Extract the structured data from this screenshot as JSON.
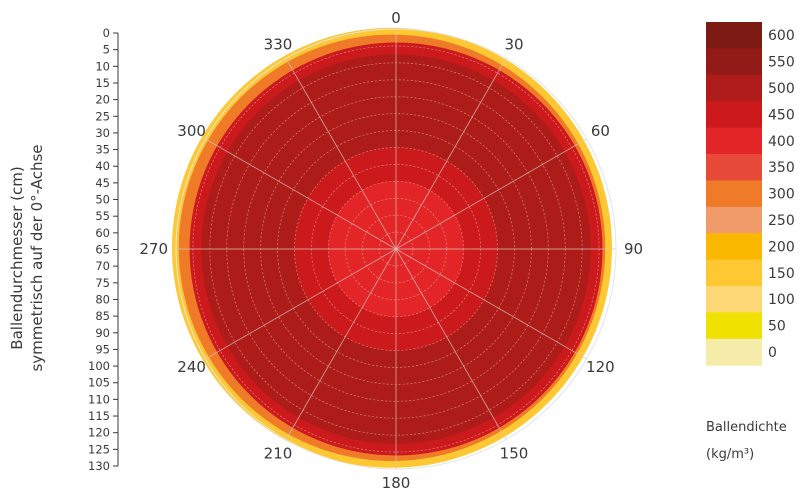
{
  "chart_data": {
    "type": "polar-heatmap",
    "title": "",
    "angular_axis": {
      "ticks": [
        0,
        30,
        60,
        90,
        120,
        150,
        180,
        210,
        240,
        270,
        300,
        330
      ],
      "labels": [
        "0",
        "30",
        "60",
        "90",
        "120",
        "150",
        "180",
        "210",
        "240",
        "270",
        "300",
        "330"
      ]
    },
    "radial_axis": {
      "label_line1": "Ballendurchmesser (cm)",
      "label_line2": "symmetrisch auf der 0°-Achse",
      "ticks": [
        "0",
        "5",
        "10",
        "15",
        "20",
        "25",
        "30",
        "35",
        "40",
        "45",
        "50",
        "55",
        "60",
        "65",
        "70",
        "75",
        "80",
        "85",
        "90",
        "95",
        "100",
        "105",
        "110",
        "115",
        "120",
        "125",
        "130"
      ],
      "range": [
        0,
        130
      ]
    },
    "colorbar": {
      "title_line1": "Ballendichte",
      "title_line2": "(kg/m³)",
      "levels": [
        {
          "value": "600",
          "color": "#7d1a14"
        },
        {
          "value": "550",
          "color": "#931b17"
        },
        {
          "value": "500",
          "color": "#ad1c19"
        },
        {
          "value": "450",
          "color": "#cc191c"
        },
        {
          "value": "400",
          "color": "#e42527"
        },
        {
          "value": "350",
          "color": "#e84a3a"
        },
        {
          "value": "300",
          "color": "#ef7a28"
        },
        {
          "value": "250",
          "color": "#f19a6a"
        },
        {
          "value": "200",
          "color": "#fbb800"
        },
        {
          "value": "150",
          "color": "#fdc832"
        },
        {
          "value": "100",
          "color": "#fdd874"
        },
        {
          "value": "50",
          "color": "#efe200"
        },
        {
          "value": "0",
          "color": "#f5ecaa"
        }
      ]
    },
    "density_by_radius": [
      {
        "r_range": [
          0,
          40
        ],
        "density": 420
      },
      {
        "r_range": [
          40,
          60
        ],
        "density": 460
      },
      {
        "r_range": [
          60,
          115
        ],
        "density": 540
      },
      {
        "r_range": [
          115,
          122
        ],
        "density": 480
      },
      {
        "r_range": [
          122,
          126
        ],
        "density": 300
      },
      {
        "r_range": [
          126,
          130
        ],
        "density": 150
      }
    ]
  }
}
